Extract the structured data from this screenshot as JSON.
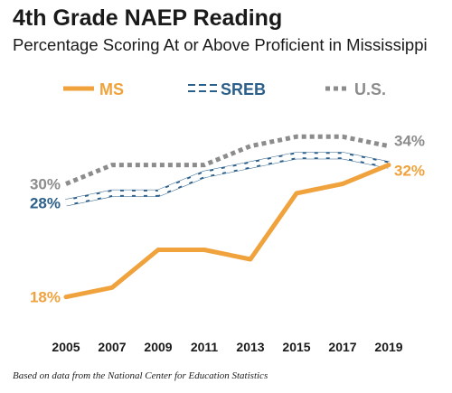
{
  "chart_data": {
    "type": "line",
    "title": "4th Grade NAEP Reading",
    "subtitle": "Percentage Scoring At or Above Proficient in Mississippi",
    "x": [
      "2005",
      "2007",
      "2009",
      "2011",
      "2013",
      "2015",
      "2017",
      "2019"
    ],
    "ylim": [
      15,
      38
    ],
    "grid": false,
    "legend_position": "top",
    "series": [
      {
        "name": "MS",
        "color": "#F0A23C",
        "style": "solid",
        "values": [
          18,
          19,
          23,
          23,
          22,
          29,
          30,
          32
        ],
        "labels": {
          "first": "18%",
          "last": "32%"
        }
      },
      {
        "name": "SREB",
        "color": "#2C5F8A",
        "style": "double-dashed",
        "values": [
          28,
          29,
          29,
          31,
          32,
          33,
          33,
          32
        ],
        "labels": {
          "first": "28%",
          "last": ""
        }
      },
      {
        "name": "U.S.",
        "color": "#8C8C8C",
        "style": "dotted",
        "values": [
          30,
          32,
          32,
          32,
          34,
          35,
          35,
          34
        ],
        "labels": {
          "first": "30%",
          "last": "34%"
        }
      }
    ],
    "source_note": "Based on data from the National Center for Education Statistics"
  }
}
